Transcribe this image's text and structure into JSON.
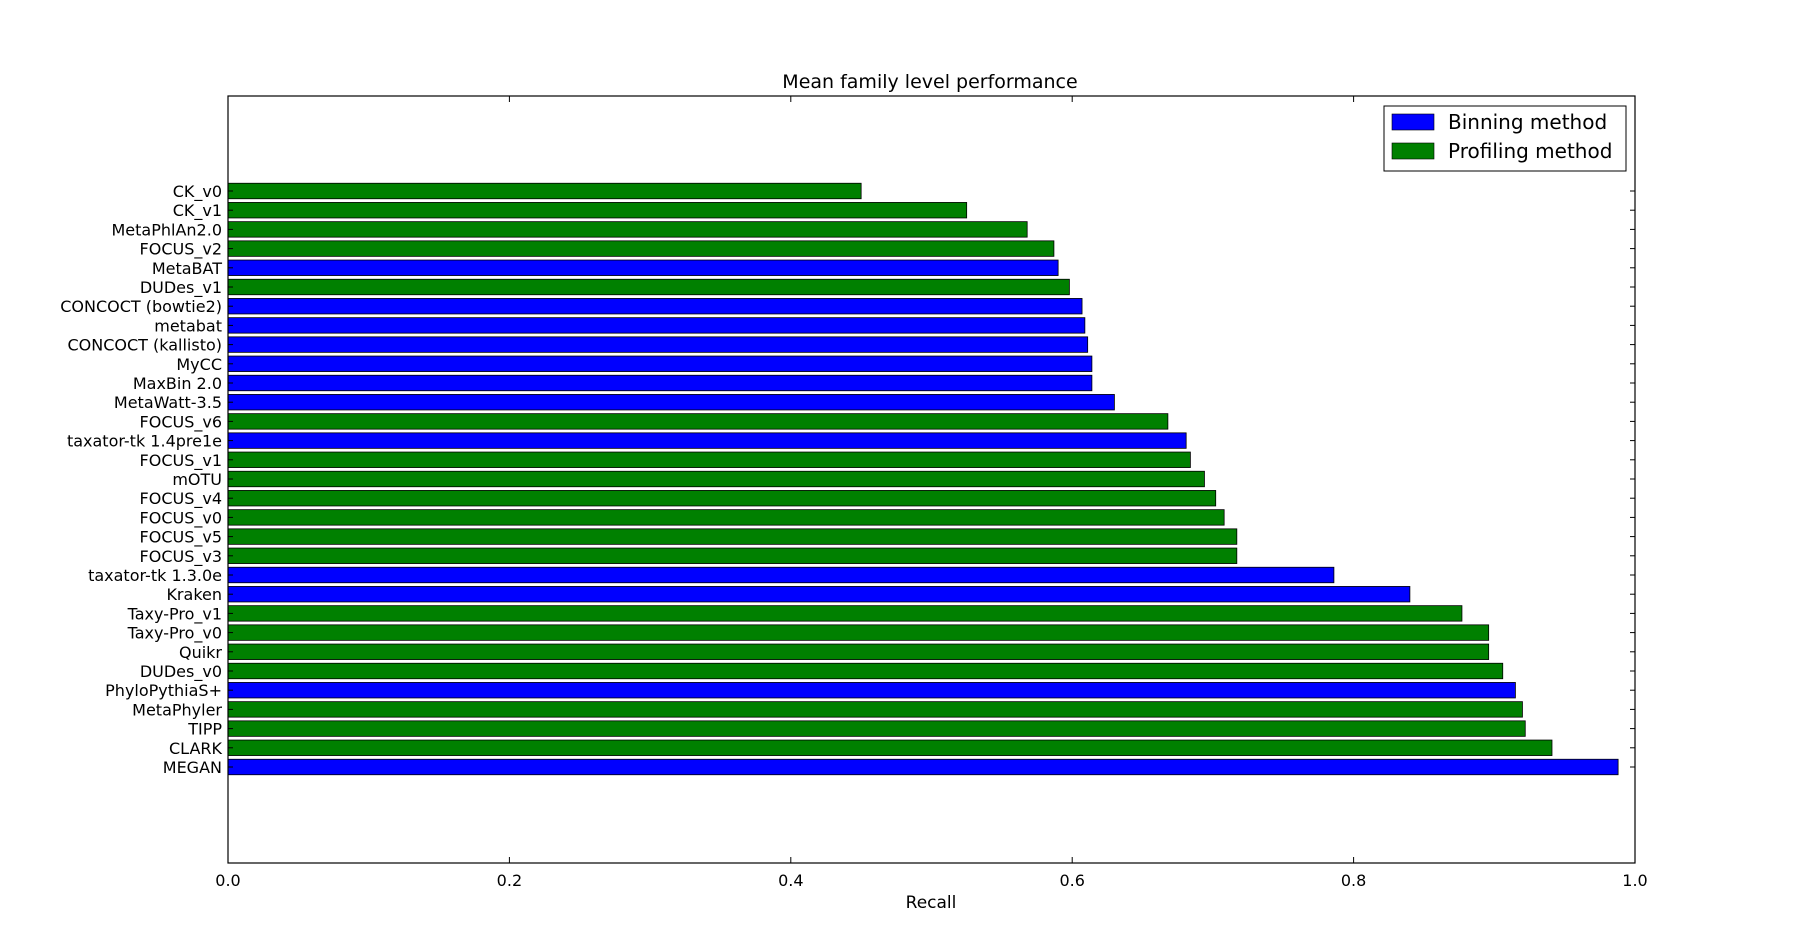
{
  "chart_data": {
    "type": "bar",
    "orientation": "horizontal",
    "title": "Mean family level performance",
    "xlabel": "Recall",
    "ylabel": "",
    "xlim": [
      0.0,
      1.0
    ],
    "xticks": [
      "0.0",
      "0.2",
      "0.4",
      "0.6",
      "0.8",
      "1.0"
    ],
    "grid": false,
    "legend_position": "top-right",
    "colors": {
      "binning": "#0000ff",
      "profiling": "#008000"
    },
    "legend": [
      {
        "key": "binning",
        "label": "Binning method"
      },
      {
        "key": "profiling",
        "label": "Profiling method"
      }
    ],
    "bars": [
      {
        "label": "CK_v0",
        "value": 0.45,
        "method": "profiling"
      },
      {
        "label": "CK_v1",
        "value": 0.525,
        "method": "profiling"
      },
      {
        "label": "MetaPhlAn2.0",
        "value": 0.568,
        "method": "profiling"
      },
      {
        "label": "FOCUS_v2",
        "value": 0.587,
        "method": "profiling"
      },
      {
        "label": "MetaBAT",
        "value": 0.59,
        "method": "binning"
      },
      {
        "label": "DUDes_v1",
        "value": 0.598,
        "method": "profiling"
      },
      {
        "label": "CONCOCT (bowtie2)",
        "value": 0.607,
        "method": "binning"
      },
      {
        "label": "metabat",
        "value": 0.609,
        "method": "binning"
      },
      {
        "label": "CONCOCT (kallisto)",
        "value": 0.611,
        "method": "binning"
      },
      {
        "label": "MyCC",
        "value": 0.614,
        "method": "binning"
      },
      {
        "label": "MaxBin 2.0",
        "value": 0.614,
        "method": "binning"
      },
      {
        "label": "MetaWatt-3.5",
        "value": 0.63,
        "method": "binning"
      },
      {
        "label": "FOCUS_v6",
        "value": 0.668,
        "method": "profiling"
      },
      {
        "label": "taxator-tk 1.4pre1e",
        "value": 0.681,
        "method": "binning"
      },
      {
        "label": "FOCUS_v1",
        "value": 0.684,
        "method": "profiling"
      },
      {
        "label": "mOTU",
        "value": 0.694,
        "method": "profiling"
      },
      {
        "label": "FOCUS_v4",
        "value": 0.702,
        "method": "profiling"
      },
      {
        "label": "FOCUS_v0",
        "value": 0.708,
        "method": "profiling"
      },
      {
        "label": "FOCUS_v5",
        "value": 0.717,
        "method": "profiling"
      },
      {
        "label": "FOCUS_v3",
        "value": 0.717,
        "method": "profiling"
      },
      {
        "label": "taxator-tk 1.3.0e",
        "value": 0.786,
        "method": "binning"
      },
      {
        "label": "Kraken",
        "value": 0.84,
        "method": "binning"
      },
      {
        "label": "Taxy-Pro_v1",
        "value": 0.877,
        "method": "profiling"
      },
      {
        "label": "Taxy-Pro_v0",
        "value": 0.896,
        "method": "profiling"
      },
      {
        "label": "Quikr",
        "value": 0.896,
        "method": "profiling"
      },
      {
        "label": "DUDes_v0",
        "value": 0.906,
        "method": "profiling"
      },
      {
        "label": "PhyloPythiaS+",
        "value": 0.915,
        "method": "binning"
      },
      {
        "label": "MetaPhyler",
        "value": 0.92,
        "method": "profiling"
      },
      {
        "label": "TIPP",
        "value": 0.922,
        "method": "profiling"
      },
      {
        "label": "CLARK",
        "value": 0.941,
        "method": "profiling"
      },
      {
        "label": "MEGAN",
        "value": 0.988,
        "method": "binning"
      }
    ]
  }
}
